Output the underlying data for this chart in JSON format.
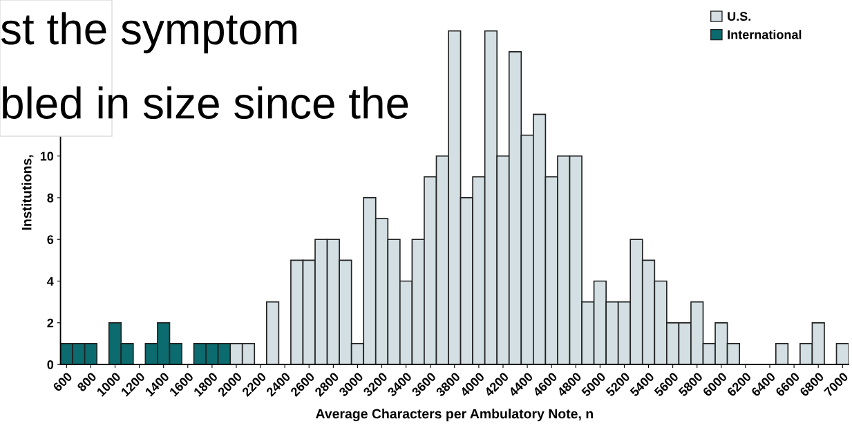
{
  "chart_data": {
    "type": "histogram",
    "xlabel": "Average Characters per Ambulatory Note, n",
    "ylabel": "Institutions,",
    "bins": [
      550,
      650,
      750,
      850,
      950,
      1050,
      1150,
      1250,
      1350,
      1450,
      1550,
      1650,
      1750,
      1850,
      1950,
      2050,
      2150,
      2250,
      2350,
      2450,
      2550,
      2650,
      2750,
      2850,
      2950,
      3050,
      3150,
      3250,
      3350,
      3450,
      3550,
      3650,
      3750,
      3850,
      3950,
      4050,
      4150,
      4250,
      4350,
      4450,
      4550,
      4650,
      4750,
      4850,
      4950,
      5050,
      5150,
      5250,
      5350,
      5450,
      5550,
      5650,
      5750,
      5850,
      5950,
      6050,
      6150,
      6250,
      6350,
      6450,
      6550,
      6650,
      6750,
      6850,
      6950,
      7050
    ],
    "series": [
      {
        "name": "U.S.",
        "color": "#d3dfe2",
        "values": [
          null,
          null,
          null,
          null,
          null,
          null,
          null,
          null,
          null,
          null,
          null,
          null,
          null,
          null,
          1,
          1,
          0,
          3,
          0,
          5,
          5,
          6,
          6,
          5,
          1,
          8,
          7,
          6,
          4,
          6,
          9,
          10,
          16,
          8,
          9,
          16,
          10,
          15,
          11,
          12,
          9,
          10,
          10,
          3,
          4,
          3,
          3,
          6,
          5,
          4,
          2,
          2,
          3,
          1,
          2,
          1,
          0,
          0,
          0,
          1,
          0,
          1,
          2,
          0,
          1
        ]
      },
      {
        "name": "International",
        "color": "#0b6b6e",
        "values": [
          1,
          1,
          1,
          0,
          2,
          1,
          0,
          1,
          2,
          1,
          0,
          1,
          1,
          1,
          null,
          null,
          null,
          null,
          null,
          null,
          null,
          null,
          null,
          null,
          null,
          null,
          null,
          null,
          null,
          null,
          null,
          null,
          null,
          null,
          null,
          null,
          null,
          null,
          null,
          null,
          null,
          null,
          null,
          null,
          null,
          null,
          null,
          null,
          null,
          null,
          null,
          null,
          null,
          null,
          null,
          null,
          null,
          null,
          null,
          null,
          null,
          null,
          null,
          null,
          null
        ]
      }
    ],
    "xlim": [
      550,
      7050
    ],
    "xticks": [
      600,
      800,
      1000,
      1200,
      1400,
      1600,
      1800,
      2000,
      2200,
      2400,
      2600,
      2800,
      3000,
      3200,
      3400,
      3600,
      3800,
      4000,
      4200,
      4400,
      4600,
      4800,
      5000,
      5200,
      5400,
      5600,
      5800,
      6000,
      6200,
      6400,
      6600,
      6800,
      7000
    ],
    "ylim": [
      0,
      16.5
    ],
    "yticks": [
      0,
      2,
      4,
      6,
      8,
      10
    ],
    "legend": "top right",
    "grid": false,
    "annotations": [
      "st the symptom",
      "bled in size since the"
    ]
  }
}
